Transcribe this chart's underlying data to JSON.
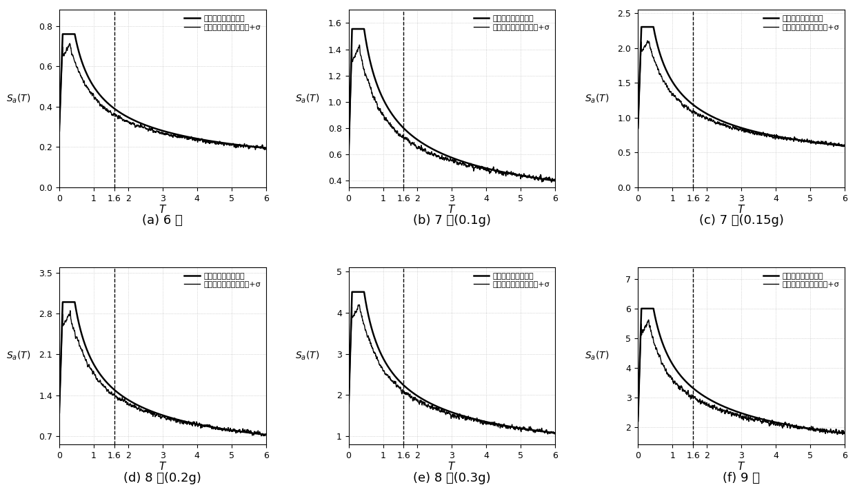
{
  "subplots": [
    {
      "caption": "(a) 6 度",
      "ylim": [
        0.0,
        0.88
      ],
      "yticks": [
        0.0,
        0.2,
        0.4,
        0.6,
        0.8
      ],
      "code_peak": 0.76,
      "code_T0": 0.0,
      "code_T1": 0.1,
      "code_T2": 0.45,
      "code_Tg": 6.0,
      "code_start": 0.28,
      "code_end": 0.195,
      "actual_peak": 0.71,
      "actual_T_peak": 0.32,
      "actual_T_descent": 0.75,
      "actual_end": 0.195,
      "noise_amp": 0.01
    },
    {
      "caption": "(b) 7 度(0.1g)",
      "ylim": [
        0.35,
        1.7
      ],
      "yticks": [
        0.4,
        0.6,
        0.8,
        1.0,
        1.2,
        1.4,
        1.6
      ],
      "code_peak": 1.555,
      "code_T0": 0.0,
      "code_T1": 0.1,
      "code_T2": 0.45,
      "code_Tg": 6.0,
      "code_start": 0.57,
      "code_end": 0.4,
      "actual_peak": 1.42,
      "actual_T_peak": 0.32,
      "actual_T_descent": 0.75,
      "actual_end": 0.405,
      "noise_amp": 0.02
    },
    {
      "caption": "(c) 7 度(0.15g)",
      "ylim": [
        0.0,
        2.55
      ],
      "yticks": [
        0.0,
        0.5,
        1.0,
        1.5,
        2.0,
        2.5
      ],
      "code_peak": 2.305,
      "code_T0": 0.0,
      "code_T1": 0.1,
      "code_T2": 0.45,
      "code_Tg": 6.0,
      "code_start": 0.85,
      "code_end": 0.595,
      "actual_peak": 2.12,
      "actual_T_peak": 0.32,
      "actual_T_descent": 0.75,
      "actual_end": 0.605,
      "noise_amp": 0.03
    },
    {
      "caption": "(d) 8 度(0.2g)",
      "ylim": [
        0.55,
        3.6
      ],
      "yticks": [
        0.7,
        1.4,
        2.1,
        2.8,
        3.5
      ],
      "code_peak": 3.0,
      "code_T0": 0.0,
      "code_T1": 0.1,
      "code_T2": 0.45,
      "code_Tg": 6.0,
      "code_start": 1.1,
      "code_end": 0.72,
      "actual_peak": 2.82,
      "actual_T_peak": 0.32,
      "actual_T_descent": 0.75,
      "actual_end": 0.73,
      "noise_amp": 0.04
    },
    {
      "caption": "(e) 8 度(0.3g)",
      "ylim": [
        0.8,
        5.1
      ],
      "yticks": [
        1,
        2,
        3,
        4,
        5
      ],
      "code_peak": 4.5,
      "code_T0": 0.0,
      "code_T1": 0.1,
      "code_T2": 0.45,
      "code_Tg": 6.0,
      "code_start": 1.65,
      "code_end": 1.08,
      "actual_peak": 4.2,
      "actual_T_peak": 0.32,
      "actual_T_descent": 0.75,
      "actual_end": 1.09,
      "noise_amp": 0.06
    },
    {
      "caption": "(f) 9 度",
      "ylim": [
        1.4,
        7.4
      ],
      "yticks": [
        2,
        3,
        4,
        5,
        6,
        7
      ],
      "code_peak": 6.0,
      "code_T0": 0.0,
      "code_T1": 0.1,
      "code_T2": 0.45,
      "code_Tg": 6.0,
      "code_start": 2.2,
      "code_end": 1.78,
      "actual_peak": 5.6,
      "actual_T_peak": 0.32,
      "actual_T_descent": 0.75,
      "actual_end": 1.8,
      "noise_amp": 0.09
    }
  ],
  "dashed_x": 1.6,
  "T_max": 6.0,
  "xtick_vals": [
    0,
    1,
    1.6,
    2,
    3,
    4,
    5,
    6
  ],
  "xtick_labels": [
    "0",
    "1",
    "1.6",
    "2",
    "3",
    "4",
    "5",
    "6"
  ],
  "legend1": "修正后的规范设计谱",
  "legend2": "实际地震动平均反应谱+σ",
  "bg_color": "#ffffff",
  "grid_color": "#b0b0b0",
  "caption_fontsize": 13
}
